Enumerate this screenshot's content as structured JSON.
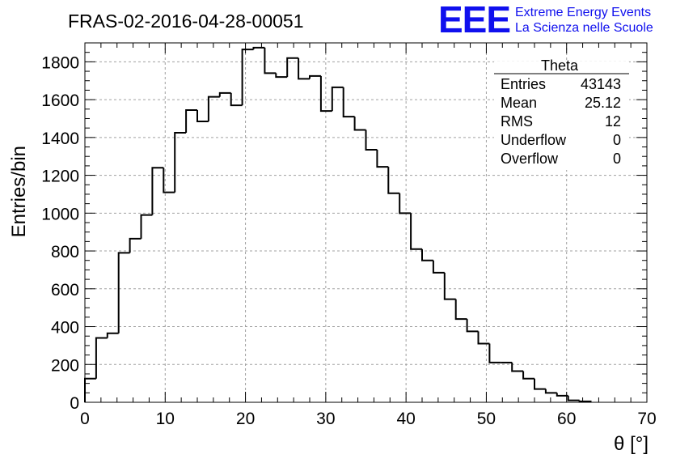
{
  "header": {
    "title": "FRAS-02-2016-04-28-00051",
    "logo_text": "EEE",
    "brand_line1": "Extreme Energy Events",
    "brand_line2": "La Scienza nelle Scuole",
    "brand_color": "#1010ee"
  },
  "stats": {
    "name": "Theta",
    "rows": [
      {
        "label": "Entries",
        "value": "43143"
      },
      {
        "label": "Mean",
        "value": "25.12"
      },
      {
        "label": "RMS",
        "value": "12"
      },
      {
        "label": "Underflow",
        "value": "0"
      },
      {
        "label": "Overflow",
        "value": "0"
      }
    ]
  },
  "chart_data": {
    "type": "bar",
    "histogram": true,
    "title": "FRAS-02-2016-04-28-00051",
    "xlabel": "θ [°]",
    "ylabel": "Entries/bin",
    "xlim": [
      0,
      70
    ],
    "ylim": [
      0,
      1900
    ],
    "grid": true,
    "x_ticks": [
      0,
      10,
      20,
      30,
      40,
      50,
      60,
      70
    ],
    "y_ticks": [
      0,
      200,
      400,
      600,
      800,
      1000,
      1200,
      1400,
      1600,
      1800
    ],
    "bin_edges": [
      0,
      1.4,
      2.8,
      4.2,
      5.6,
      7.0,
      8.4,
      9.8,
      11.2,
      12.6,
      14.0,
      15.4,
      16.8,
      18.2,
      19.6,
      21.0,
      22.4,
      23.8,
      25.2,
      26.6,
      28.0,
      29.4,
      30.8,
      32.2,
      33.6,
      35.0,
      36.4,
      37.8,
      39.2,
      40.6,
      42.0,
      43.4,
      44.8,
      46.2,
      47.6,
      49.0,
      50.4,
      51.8,
      53.2,
      54.6,
      56.0,
      57.4,
      58.8,
      60.2,
      61.6,
      63.0
    ],
    "values": [
      125,
      340,
      365,
      790,
      865,
      990,
      1240,
      1110,
      1425,
      1545,
      1485,
      1615,
      1635,
      1570,
      1865,
      1875,
      1740,
      1720,
      1820,
      1710,
      1725,
      1540,
      1665,
      1510,
      1440,
      1335,
      1245,
      1105,
      1000,
      810,
      750,
      685,
      545,
      440,
      375,
      310,
      210,
      210,
      165,
      125,
      70,
      50,
      35,
      10,
      5
    ]
  }
}
